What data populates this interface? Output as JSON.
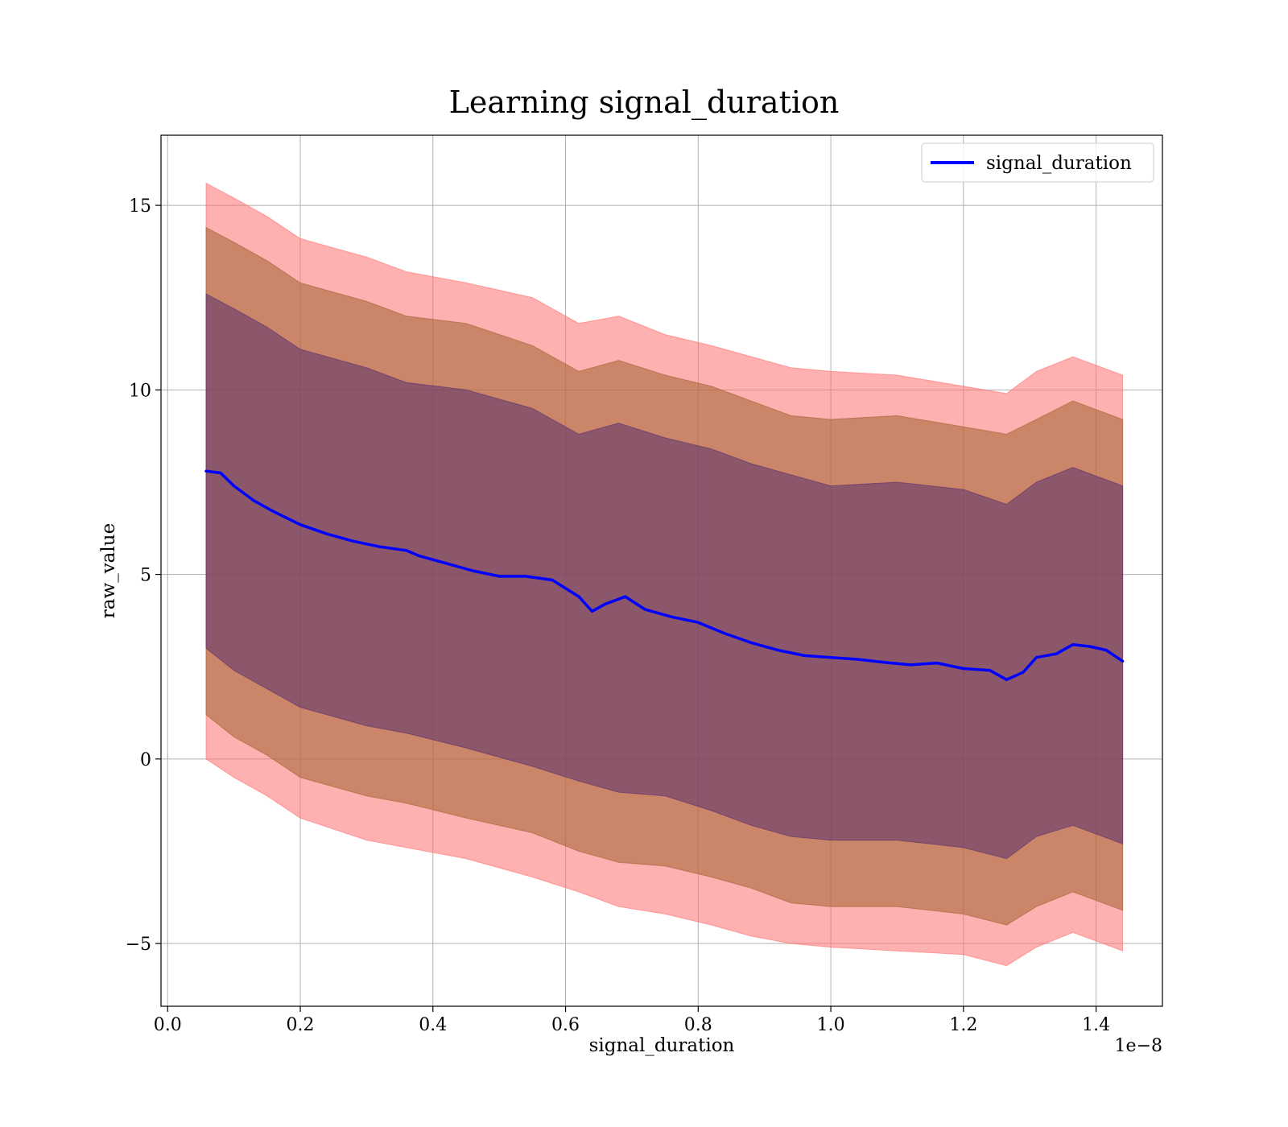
{
  "chart_data": {
    "type": "line",
    "title": "Learning signal_duration",
    "xlabel": "signal_duration",
    "ylabel": "raw_value",
    "x_offset_text": "1e−8",
    "xlim": [
      -0.01,
      1.5
    ],
    "ylim": [
      -6.7,
      16.9
    ],
    "x_ticks": [
      0.0,
      0.2,
      0.4,
      0.6,
      0.8,
      1.0,
      1.2,
      1.4
    ],
    "x_tick_labels": [
      "0.0",
      "0.2",
      "0.4",
      "0.6",
      "0.8",
      "1.0",
      "1.2",
      "1.4"
    ],
    "y_ticks": [
      -5,
      0,
      5,
      10,
      15
    ],
    "y_tick_labels": [
      "−5",
      "0",
      "5",
      "10",
      "15"
    ],
    "grid": true,
    "legend": {
      "position": "top-right",
      "entries": [
        "signal_duration"
      ]
    },
    "colors": {
      "line": "#0000ff",
      "band3": "#ff7070",
      "band2": "#a0622e",
      "band1": "#5a2f6e",
      "grid": "#b0b0b0"
    },
    "series": [
      {
        "name": "signal_duration",
        "x": [
          0.058,
          0.08,
          0.1,
          0.13,
          0.16,
          0.2,
          0.24,
          0.28,
          0.32,
          0.36,
          0.38,
          0.42,
          0.46,
          0.5,
          0.54,
          0.58,
          0.62,
          0.64,
          0.66,
          0.69,
          0.72,
          0.76,
          0.8,
          0.84,
          0.88,
          0.92,
          0.96,
          1.0,
          1.04,
          1.08,
          1.12,
          1.16,
          1.2,
          1.24,
          1.265,
          1.29,
          1.31,
          1.34,
          1.365,
          1.39,
          1.415,
          1.44
        ],
        "y": [
          7.8,
          7.75,
          7.4,
          7.0,
          6.7,
          6.35,
          6.1,
          5.9,
          5.75,
          5.65,
          5.5,
          5.3,
          5.1,
          4.95,
          4.95,
          4.85,
          4.4,
          4.0,
          4.2,
          4.4,
          4.05,
          3.85,
          3.7,
          3.4,
          3.15,
          2.95,
          2.8,
          2.75,
          2.7,
          2.62,
          2.55,
          2.6,
          2.45,
          2.4,
          2.15,
          2.35,
          2.75,
          2.85,
          3.1,
          3.05,
          2.95,
          2.65
        ]
      }
    ],
    "bands": [
      {
        "sigma": 1,
        "x": [
          0.058,
          0.1,
          0.15,
          0.2,
          0.3,
          0.36,
          0.45,
          0.55,
          0.62,
          0.68,
          0.75,
          0.82,
          0.88,
          0.94,
          1.0,
          1.1,
          1.2,
          1.265,
          1.31,
          1.365,
          1.44
        ],
        "upper": [
          12.6,
          12.2,
          11.7,
          11.1,
          10.6,
          10.2,
          10.0,
          9.5,
          8.8,
          9.1,
          8.7,
          8.4,
          8.0,
          7.7,
          7.4,
          7.5,
          7.3,
          6.9,
          7.5,
          7.9,
          7.4
        ],
        "lower": [
          3.0,
          2.4,
          1.9,
          1.4,
          0.9,
          0.7,
          0.3,
          -0.2,
          -0.6,
          -0.9,
          -1.0,
          -1.4,
          -1.8,
          -2.1,
          -2.2,
          -2.2,
          -2.4,
          -2.7,
          -2.1,
          -1.8,
          -2.3
        ]
      },
      {
        "sigma": 2,
        "x": [
          0.058,
          0.1,
          0.15,
          0.2,
          0.3,
          0.36,
          0.45,
          0.55,
          0.62,
          0.68,
          0.75,
          0.82,
          0.88,
          0.94,
          1.0,
          1.1,
          1.2,
          1.265,
          1.31,
          1.365,
          1.44
        ],
        "upper": [
          14.4,
          14.0,
          13.5,
          12.9,
          12.4,
          12.0,
          11.8,
          11.2,
          10.5,
          10.8,
          10.4,
          10.1,
          9.7,
          9.3,
          9.2,
          9.3,
          9.0,
          8.8,
          9.2,
          9.7,
          9.2
        ],
        "lower": [
          1.2,
          0.6,
          0.1,
          -0.5,
          -1.0,
          -1.2,
          -1.6,
          -2.0,
          -2.5,
          -2.8,
          -2.9,
          -3.2,
          -3.5,
          -3.9,
          -4.0,
          -4.0,
          -4.2,
          -4.5,
          -4.0,
          -3.6,
          -4.1
        ]
      },
      {
        "sigma": 3,
        "x": [
          0.058,
          0.1,
          0.15,
          0.2,
          0.3,
          0.36,
          0.45,
          0.55,
          0.62,
          0.68,
          0.75,
          0.82,
          0.88,
          0.94,
          1.0,
          1.1,
          1.2,
          1.265,
          1.31,
          1.365,
          1.44
        ],
        "upper": [
          15.6,
          15.2,
          14.7,
          14.1,
          13.6,
          13.2,
          12.9,
          12.5,
          11.8,
          12.0,
          11.5,
          11.2,
          10.9,
          10.6,
          10.5,
          10.4,
          10.1,
          9.9,
          10.5,
          10.9,
          10.4
        ],
        "lower": [
          0.0,
          -0.5,
          -1.0,
          -1.6,
          -2.2,
          -2.4,
          -2.7,
          -3.2,
          -3.6,
          -4.0,
          -4.2,
          -4.5,
          -4.8,
          -5.0,
          -5.1,
          -5.2,
          -5.3,
          -5.6,
          -5.1,
          -4.7,
          -5.2
        ]
      }
    ]
  }
}
